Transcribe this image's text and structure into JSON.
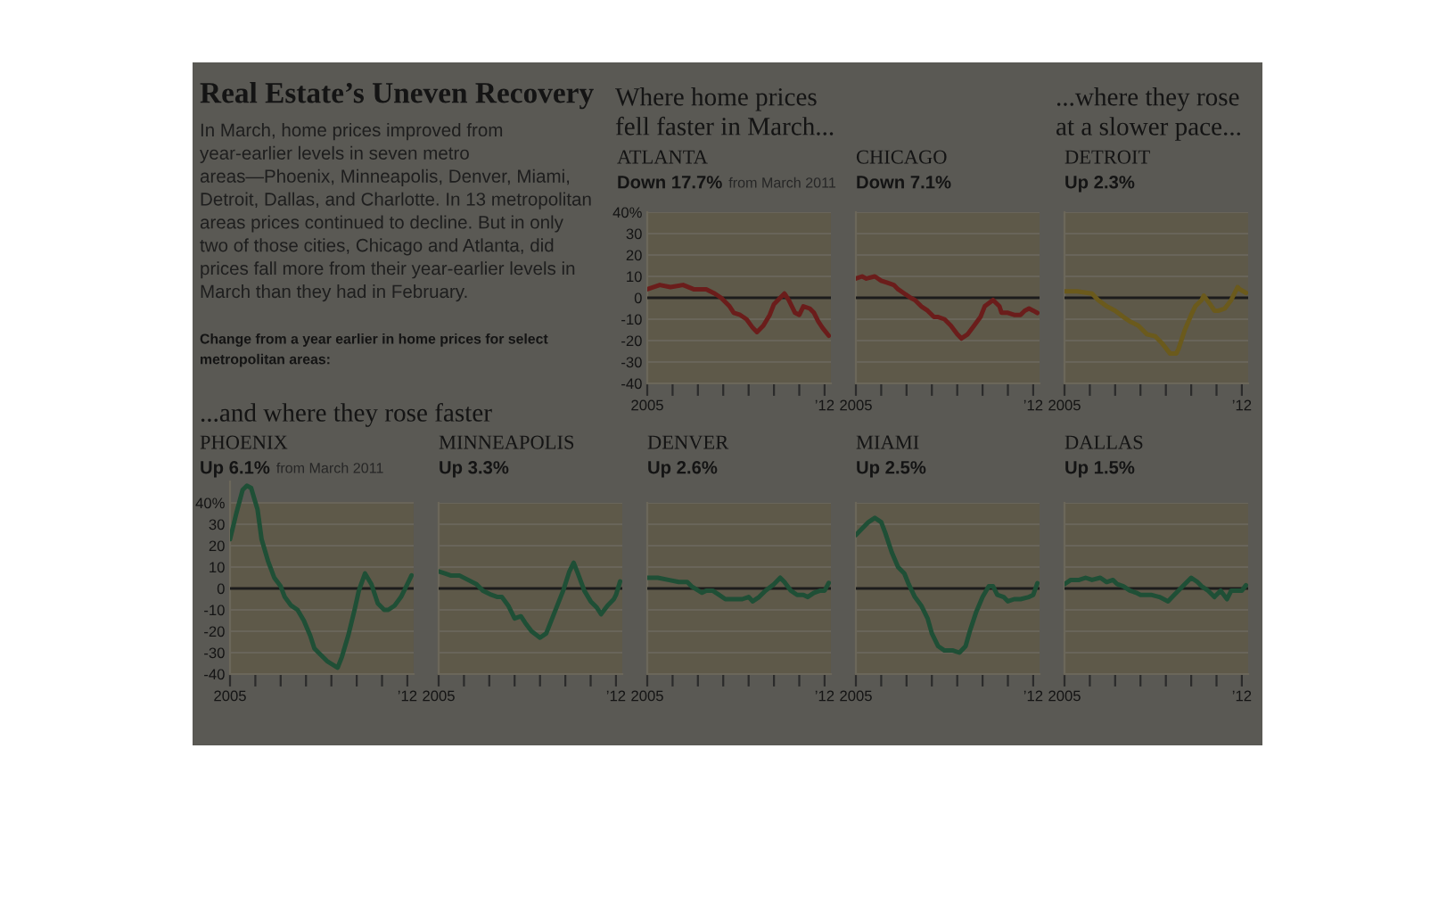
{
  "chart_data": [
    {
      "type": "other",
      "title": "Real Estate’s Uneven Recovery",
      "subtitle": "In March, home prices improved from\nyear-earlier levels in seven metro\nareas—Phoenix, Minneapolis, Denver, Miami,\nDetroit, Dallas, and Charlotte. In 13 metropolitan\nareas prices continued to decline. But in only\ntwo of those cities, Chicago and Atlanta, did\nprices fall more from their year-earlier levels in\nMarch than they had in February.",
      "annotations": [
        "Change from a year earlier in home prices for select\nmetropolitan areas:"
      ]
    },
    {
      "type": "other",
      "title": "Where home prices\nfell faster in March..."
    },
    {
      "type": "line",
      "title": "ATLANTA",
      "subtitle": "Down 17.7%",
      "annotations": [
        "from March 2011"
      ],
      "x": [
        "2005-01",
        "2005-07",
        "2005-12",
        "2006-06",
        "2006-11",
        "2007-05",
        "2007-09",
        "2007-12",
        "2008-04",
        "2008-06",
        "2008-09",
        "2008-12",
        "2009-03",
        "2009-05",
        "2009-08",
        "2009-11",
        "2010-01",
        "2010-04",
        "2010-06",
        "2010-08",
        "2010-11",
        "2011-01",
        "2011-03",
        "2011-06",
        "2011-08",
        "2011-10",
        "2011-12",
        "2012-03"
      ],
      "series": [
        {
          "color": "#6b1d1b",
          "values": [
            4,
            6,
            5,
            6,
            4,
            4,
            2,
            0,
            -4,
            -7,
            -8,
            -10,
            -14,
            -16,
            -13,
            -8,
            -3,
            0,
            2,
            -1,
            -7,
            -8,
            -4,
            -5,
            -7,
            -11,
            -14,
            -17.7
          ]
        }
      ],
      "xlim": [
        "2005-01",
        "2012-04"
      ],
      "xticks": [
        {
          "value": "2005-01",
          "label": "2005"
        },
        {
          "value": "2006-01",
          "label": null
        },
        {
          "value": "2007-01",
          "label": null
        },
        {
          "value": "2008-01",
          "label": null
        },
        {
          "value": "2009-01",
          "label": null
        },
        {
          "value": "2010-01",
          "label": null
        },
        {
          "value": "2011-01",
          "label": null
        },
        {
          "value": "2012-01",
          "label": "’12"
        }
      ],
      "ylim": [
        -40,
        40
      ],
      "yticks": [
        -40,
        -30,
        -20,
        -10,
        0,
        10,
        20,
        30,
        {
          "value": 40,
          "label": "40%"
        }
      ],
      "grid": "y",
      "ref_lines": [
        {
          "axis": "y",
          "value": 0,
          "color": "#1c1c1c"
        }
      ]
    },
    {
      "type": "line",
      "title": "CHICAGO",
      "subtitle": "Down 7.1%",
      "x": [
        "2005-01",
        "2005-04",
        "2005-06",
        "2005-10",
        "2006-01",
        "2006-04",
        "2006-07",
        "2006-09",
        "2006-12",
        "2007-03",
        "2007-05",
        "2007-08",
        "2007-11",
        "2008-02",
        "2008-04",
        "2008-07",
        "2008-10",
        "2009-01",
        "2009-03",
        "2009-06",
        "2009-09",
        "2009-12",
        "2010-02",
        "2010-06",
        "2010-09",
        "2010-10",
        "2011-01",
        "2011-04",
        "2011-07",
        "2011-09",
        "2011-11",
        "2012-01",
        "2012-03"
      ],
      "series": [
        {
          "color": "#6b1d1b",
          "values": [
            9,
            10,
            9,
            10,
            8,
            7,
            6,
            4,
            2,
            0,
            -1,
            -4,
            -6,
            -9,
            -9,
            -10,
            -13,
            -17,
            -19,
            -17,
            -13,
            -9,
            -4,
            -1,
            -4,
            -7,
            -7,
            -8,
            -8,
            -6,
            -5,
            -6,
            -7.1
          ]
        }
      ],
      "xlim": [
        "2005-01",
        "2012-04"
      ],
      "xticks": [
        {
          "value": "2005-01",
          "label": "2005"
        },
        {
          "value": "2006-01",
          "label": null
        },
        {
          "value": "2007-01",
          "label": null
        },
        {
          "value": "2008-01",
          "label": null
        },
        {
          "value": "2009-01",
          "label": null
        },
        {
          "value": "2010-01",
          "label": null
        },
        {
          "value": "2011-01",
          "label": null
        },
        {
          "value": "2012-01",
          "label": "’12"
        }
      ],
      "ylim": [
        -40,
        40
      ],
      "yticks": [
        -40,
        -30,
        -20,
        -10,
        0,
        10,
        20,
        30,
        40
      ],
      "tick_labels": "x",
      "grid": "y",
      "ref_lines": [
        {
          "axis": "y",
          "value": 0,
          "color": "#1c1c1c"
        }
      ]
    },
    {
      "type": "other",
      "title": "...where they rose\nat a slower pace..."
    },
    {
      "type": "line",
      "title": "DETROIT",
      "subtitle": "Up 2.3%",
      "x": [
        "2005-01",
        "2005-07",
        "2006-02",
        "2006-05",
        "2006-09",
        "2007-01",
        "2007-05",
        "2007-08",
        "2007-12",
        "2008-04",
        "2008-08",
        "2008-11",
        "2009-03",
        "2009-06",
        "2009-07",
        "2009-10",
        "2010-01",
        "2010-03",
        "2010-06",
        "2010-07",
        "2010-10",
        "2010-12",
        "2011-02",
        "2011-05",
        "2011-08",
        "2011-11",
        "2011-12",
        "2012-03"
      ],
      "series": [
        {
          "color": "#6b5a1c",
          "values": [
            3,
            3,
            2,
            -1,
            -4,
            -6,
            -9,
            -11,
            -13,
            -17,
            -18,
            -21,
            -26,
            -26,
            -24,
            -15,
            -8,
            -4,
            -1,
            1,
            -3,
            -6,
            -6,
            -5,
            -1,
            5,
            4,
            2.3
          ]
        }
      ],
      "xlim": [
        "2005-01",
        "2012-04"
      ],
      "xticks": [
        {
          "value": "2005-01",
          "label": "2005"
        },
        {
          "value": "2006-01",
          "label": null
        },
        {
          "value": "2007-01",
          "label": null
        },
        {
          "value": "2008-01",
          "label": null
        },
        {
          "value": "2009-01",
          "label": null
        },
        {
          "value": "2010-01",
          "label": null
        },
        {
          "value": "2011-01",
          "label": null
        },
        {
          "value": "2012-01",
          "label": "’12"
        }
      ],
      "ylim": [
        -40,
        40
      ],
      "yticks": [
        -40,
        -30,
        -20,
        -10,
        0,
        10,
        20,
        30,
        40
      ],
      "tick_labels": "x",
      "grid": "y",
      "ref_lines": [
        {
          "axis": "y",
          "value": 0,
          "color": "#1c1c1c"
        }
      ]
    },
    {
      "type": "other",
      "title": "...and where they rose faster"
    },
    {
      "type": "line",
      "title": "PHOENIX",
      "subtitle": "Up 6.1%",
      "annotations": [
        "from March 2011"
      ],
      "x": [
        "2005-01",
        "2005-04",
        "2005-07",
        "2005-09",
        "2005-11",
        "2006-02",
        "2006-04",
        "2006-07",
        "2006-10",
        "2007-01",
        "2007-03",
        "2007-06",
        "2007-09",
        "2007-12",
        "2008-03",
        "2008-05",
        "2008-08",
        "2008-11",
        "2009-04",
        "2009-06",
        "2009-09",
        "2009-12",
        "2010-02",
        "2010-05",
        "2010-08",
        "2010-11",
        "2011-02",
        "2011-04",
        "2011-07",
        "2011-10",
        "2012-01",
        "2012-03"
      ],
      "series": [
        {
          "color": "#1f4f36",
          "values": [
            23,
            35,
            46,
            48,
            47,
            37,
            23,
            13,
            5,
            1,
            -4,
            -8,
            -10,
            -15,
            -22,
            -28,
            -31,
            -34,
            -37,
            -32,
            -22,
            -10,
            -1,
            7,
            2,
            -7,
            -10,
            -10,
            -8,
            -4,
            2,
            6.1
          ]
        }
      ],
      "xlim": [
        "2005-01",
        "2012-04"
      ],
      "xticks": [
        {
          "value": "2005-01",
          "label": "2005"
        },
        {
          "value": "2006-01",
          "label": null
        },
        {
          "value": "2007-01",
          "label": null
        },
        {
          "value": "2008-01",
          "label": null
        },
        {
          "value": "2009-01",
          "label": null
        },
        {
          "value": "2010-01",
          "label": null
        },
        {
          "value": "2011-01",
          "label": null
        },
        {
          "value": "2012-01",
          "label": "’12"
        }
      ],
      "ylim": [
        -40,
        50
      ],
      "yticks": [
        -40,
        -30,
        -20,
        -10,
        0,
        10,
        20,
        30,
        {
          "value": 40,
          "label": "40%"
        }
      ],
      "grid": "y",
      "ref_lines": [
        {
          "axis": "y",
          "value": 0,
          "color": "#1c1c1c"
        }
      ],
      "bands": [
        {
          "axis": "y",
          "from": -40,
          "to": 40,
          "color": "#5e5949"
        }
      ]
    },
    {
      "type": "line",
      "title": "MINNEAPOLIS",
      "subtitle": "Up 3.3%",
      "x": [
        "2005-01",
        "2005-04",
        "2005-07",
        "2005-11",
        "2006-03",
        "2006-07",
        "2006-10",
        "2007-02",
        "2007-05",
        "2007-07",
        "2007-10",
        "2008-01",
        "2008-04",
        "2008-06",
        "2008-09",
        "2009-01",
        "2009-04",
        "2009-08",
        "2009-12",
        "2010-03",
        "2010-05",
        "2010-07",
        "2010-10",
        "2011-01",
        "2011-04",
        "2011-06",
        "2011-09",
        "2011-12",
        "2012-01",
        "2012-03"
      ],
      "series": [
        {
          "color": "#1f4f36",
          "values": [
            8,
            7,
            6,
            6,
            4,
            2,
            -1,
            -3,
            -4,
            -4,
            -8,
            -14,
            -13,
            -16,
            -20,
            -23,
            -21,
            -11,
            -1,
            8,
            12,
            7,
            -1,
            -6,
            -9,
            -12,
            -8,
            -5,
            -3,
            3.3
          ]
        }
      ],
      "xlim": [
        "2005-01",
        "2012-04"
      ],
      "xticks": [
        {
          "value": "2005-01",
          "label": "2005"
        },
        {
          "value": "2006-01",
          "label": null
        },
        {
          "value": "2007-01",
          "label": null
        },
        {
          "value": "2008-01",
          "label": null
        },
        {
          "value": "2009-01",
          "label": null
        },
        {
          "value": "2010-01",
          "label": null
        },
        {
          "value": "2011-01",
          "label": null
        },
        {
          "value": "2012-01",
          "label": "’12"
        }
      ],
      "ylim": [
        -40,
        40
      ],
      "yticks": [
        -40,
        -30,
        -20,
        -10,
        0,
        10,
        20,
        30,
        40
      ],
      "tick_labels": "x",
      "grid": "y",
      "ref_lines": [
        {
          "axis": "y",
          "value": 0,
          "color": "#1c1c1c"
        }
      ]
    },
    {
      "type": "line",
      "title": "DENVER",
      "subtitle": "Up 2.6%",
      "x": [
        "2005-01",
        "2005-06",
        "2005-11",
        "2006-04",
        "2006-08",
        "2006-10",
        "2007-03",
        "2007-05",
        "2007-08",
        "2007-11",
        "2008-02",
        "2008-06",
        "2008-10",
        "2009-01",
        "2009-03",
        "2009-06",
        "2009-09",
        "2010-01",
        "2010-04",
        "2010-06",
        "2010-09",
        "2010-12",
        "2011-03",
        "2011-05",
        "2011-08",
        "2011-11",
        "2012-01",
        "2012-03"
      ],
      "series": [
        {
          "color": "#1f4f36",
          "values": [
            5,
            5,
            4,
            3,
            3,
            1,
            -2,
            -1,
            -1,
            -3,
            -5,
            -5,
            -5,
            -4,
            -6,
            -4,
            -1,
            2,
            5,
            3,
            -1,
            -3,
            -3,
            -4,
            -2,
            -1,
            -1,
            2.6
          ]
        }
      ],
      "xlim": [
        "2005-01",
        "2012-04"
      ],
      "xticks": [
        {
          "value": "2005-01",
          "label": "2005"
        },
        {
          "value": "2006-01",
          "label": null
        },
        {
          "value": "2007-01",
          "label": null
        },
        {
          "value": "2008-01",
          "label": null
        },
        {
          "value": "2009-01",
          "label": null
        },
        {
          "value": "2010-01",
          "label": null
        },
        {
          "value": "2011-01",
          "label": null
        },
        {
          "value": "2012-01",
          "label": "’12"
        }
      ],
      "ylim": [
        -40,
        40
      ],
      "yticks": [
        -40,
        -30,
        -20,
        -10,
        0,
        10,
        20,
        30,
        40
      ],
      "tick_labels": "x",
      "grid": "y",
      "ref_lines": [
        {
          "axis": "y",
          "value": 0,
          "color": "#1c1c1c"
        }
      ]
    },
    {
      "type": "line",
      "title": "MIAMI",
      "subtitle": "Up 2.5%",
      "x": [
        "2005-01",
        "2005-04",
        "2005-07",
        "2005-10",
        "2006-01",
        "2006-03",
        "2006-06",
        "2006-09",
        "2006-12",
        "2007-02",
        "2007-05",
        "2007-08",
        "2007-11",
        "2008-01",
        "2008-04",
        "2008-07",
        "2008-11",
        "2009-02",
        "2009-05",
        "2009-07",
        "2009-10",
        "2010-01",
        "2010-04",
        "2010-06",
        "2010-08",
        "2010-11",
        "2011-01",
        "2011-04",
        "2011-07",
        "2011-11",
        "2012-01",
        "2012-03"
      ],
      "series": [
        {
          "color": "#1f4f36",
          "values": [
            25,
            28,
            31,
            33,
            31,
            26,
            17,
            10,
            7,
            2,
            -4,
            -8,
            -14,
            -21,
            -27,
            -29,
            -29,
            -30,
            -27,
            -20,
            -11,
            -4,
            1,
            1,
            -3,
            -4,
            -6,
            -5,
            -5,
            -4,
            -3,
            2.5
          ]
        }
      ],
      "xlim": [
        "2005-01",
        "2012-04"
      ],
      "xticks": [
        {
          "value": "2005-01",
          "label": "2005"
        },
        {
          "value": "2006-01",
          "label": null
        },
        {
          "value": "2007-01",
          "label": null
        },
        {
          "value": "2008-01",
          "label": null
        },
        {
          "value": "2009-01",
          "label": null
        },
        {
          "value": "2010-01",
          "label": null
        },
        {
          "value": "2011-01",
          "label": null
        },
        {
          "value": "2012-01",
          "label": "’12"
        }
      ],
      "ylim": [
        -40,
        40
      ],
      "yticks": [
        -40,
        -30,
        -20,
        -10,
        0,
        10,
        20,
        30,
        40
      ],
      "tick_labels": "x",
      "grid": "y",
      "ref_lines": [
        {
          "axis": "y",
          "value": 0,
          "color": "#1c1c1c"
        }
      ]
    },
    {
      "type": "line",
      "title": "DALLAS",
      "subtitle": "Up 1.5%",
      "x": [
        "2005-01",
        "2005-04",
        "2005-08",
        "2005-11",
        "2006-02",
        "2006-06",
        "2006-09",
        "2006-12",
        "2007-02",
        "2007-05",
        "2007-08",
        "2007-11",
        "2008-01",
        "2008-06",
        "2008-10",
        "2009-02",
        "2009-05",
        "2009-09",
        "2010-01",
        "2010-04",
        "2010-06",
        "2010-09",
        "2010-12",
        "2011-03",
        "2011-06",
        "2011-08",
        "2011-12",
        "2012-01",
        "2012-03"
      ],
      "series": [
        {
          "color": "#1f4f36",
          "values": [
            2,
            4,
            4,
            5,
            4,
            5,
            3,
            4,
            2,
            1,
            -1,
            -2,
            -3,
            -3,
            -4,
            -6,
            -3,
            1,
            5,
            3,
            1,
            -1,
            -4,
            -1,
            -5,
            -1,
            -1,
            -1,
            1.5
          ]
        }
      ],
      "xlim": [
        "2005-01",
        "2012-04"
      ],
      "xticks": [
        {
          "value": "2005-01",
          "label": "2005"
        },
        {
          "value": "2006-01",
          "label": null
        },
        {
          "value": "2007-01",
          "label": null
        },
        {
          "value": "2008-01",
          "label": null
        },
        {
          "value": "2009-01",
          "label": null
        },
        {
          "value": "2010-01",
          "label": null
        },
        {
          "value": "2011-01",
          "label": null
        },
        {
          "value": "2012-01",
          "label": "’12"
        }
      ],
      "ylim": [
        -40,
        40
      ],
      "yticks": [
        -40,
        -30,
        -20,
        -10,
        0,
        10,
        20,
        30,
        40
      ],
      "tick_labels": "x",
      "grid": "y",
      "ref_lines": [
        {
          "axis": "y",
          "value": 0,
          "color": "#1c1c1c"
        }
      ]
    }
  ]
}
